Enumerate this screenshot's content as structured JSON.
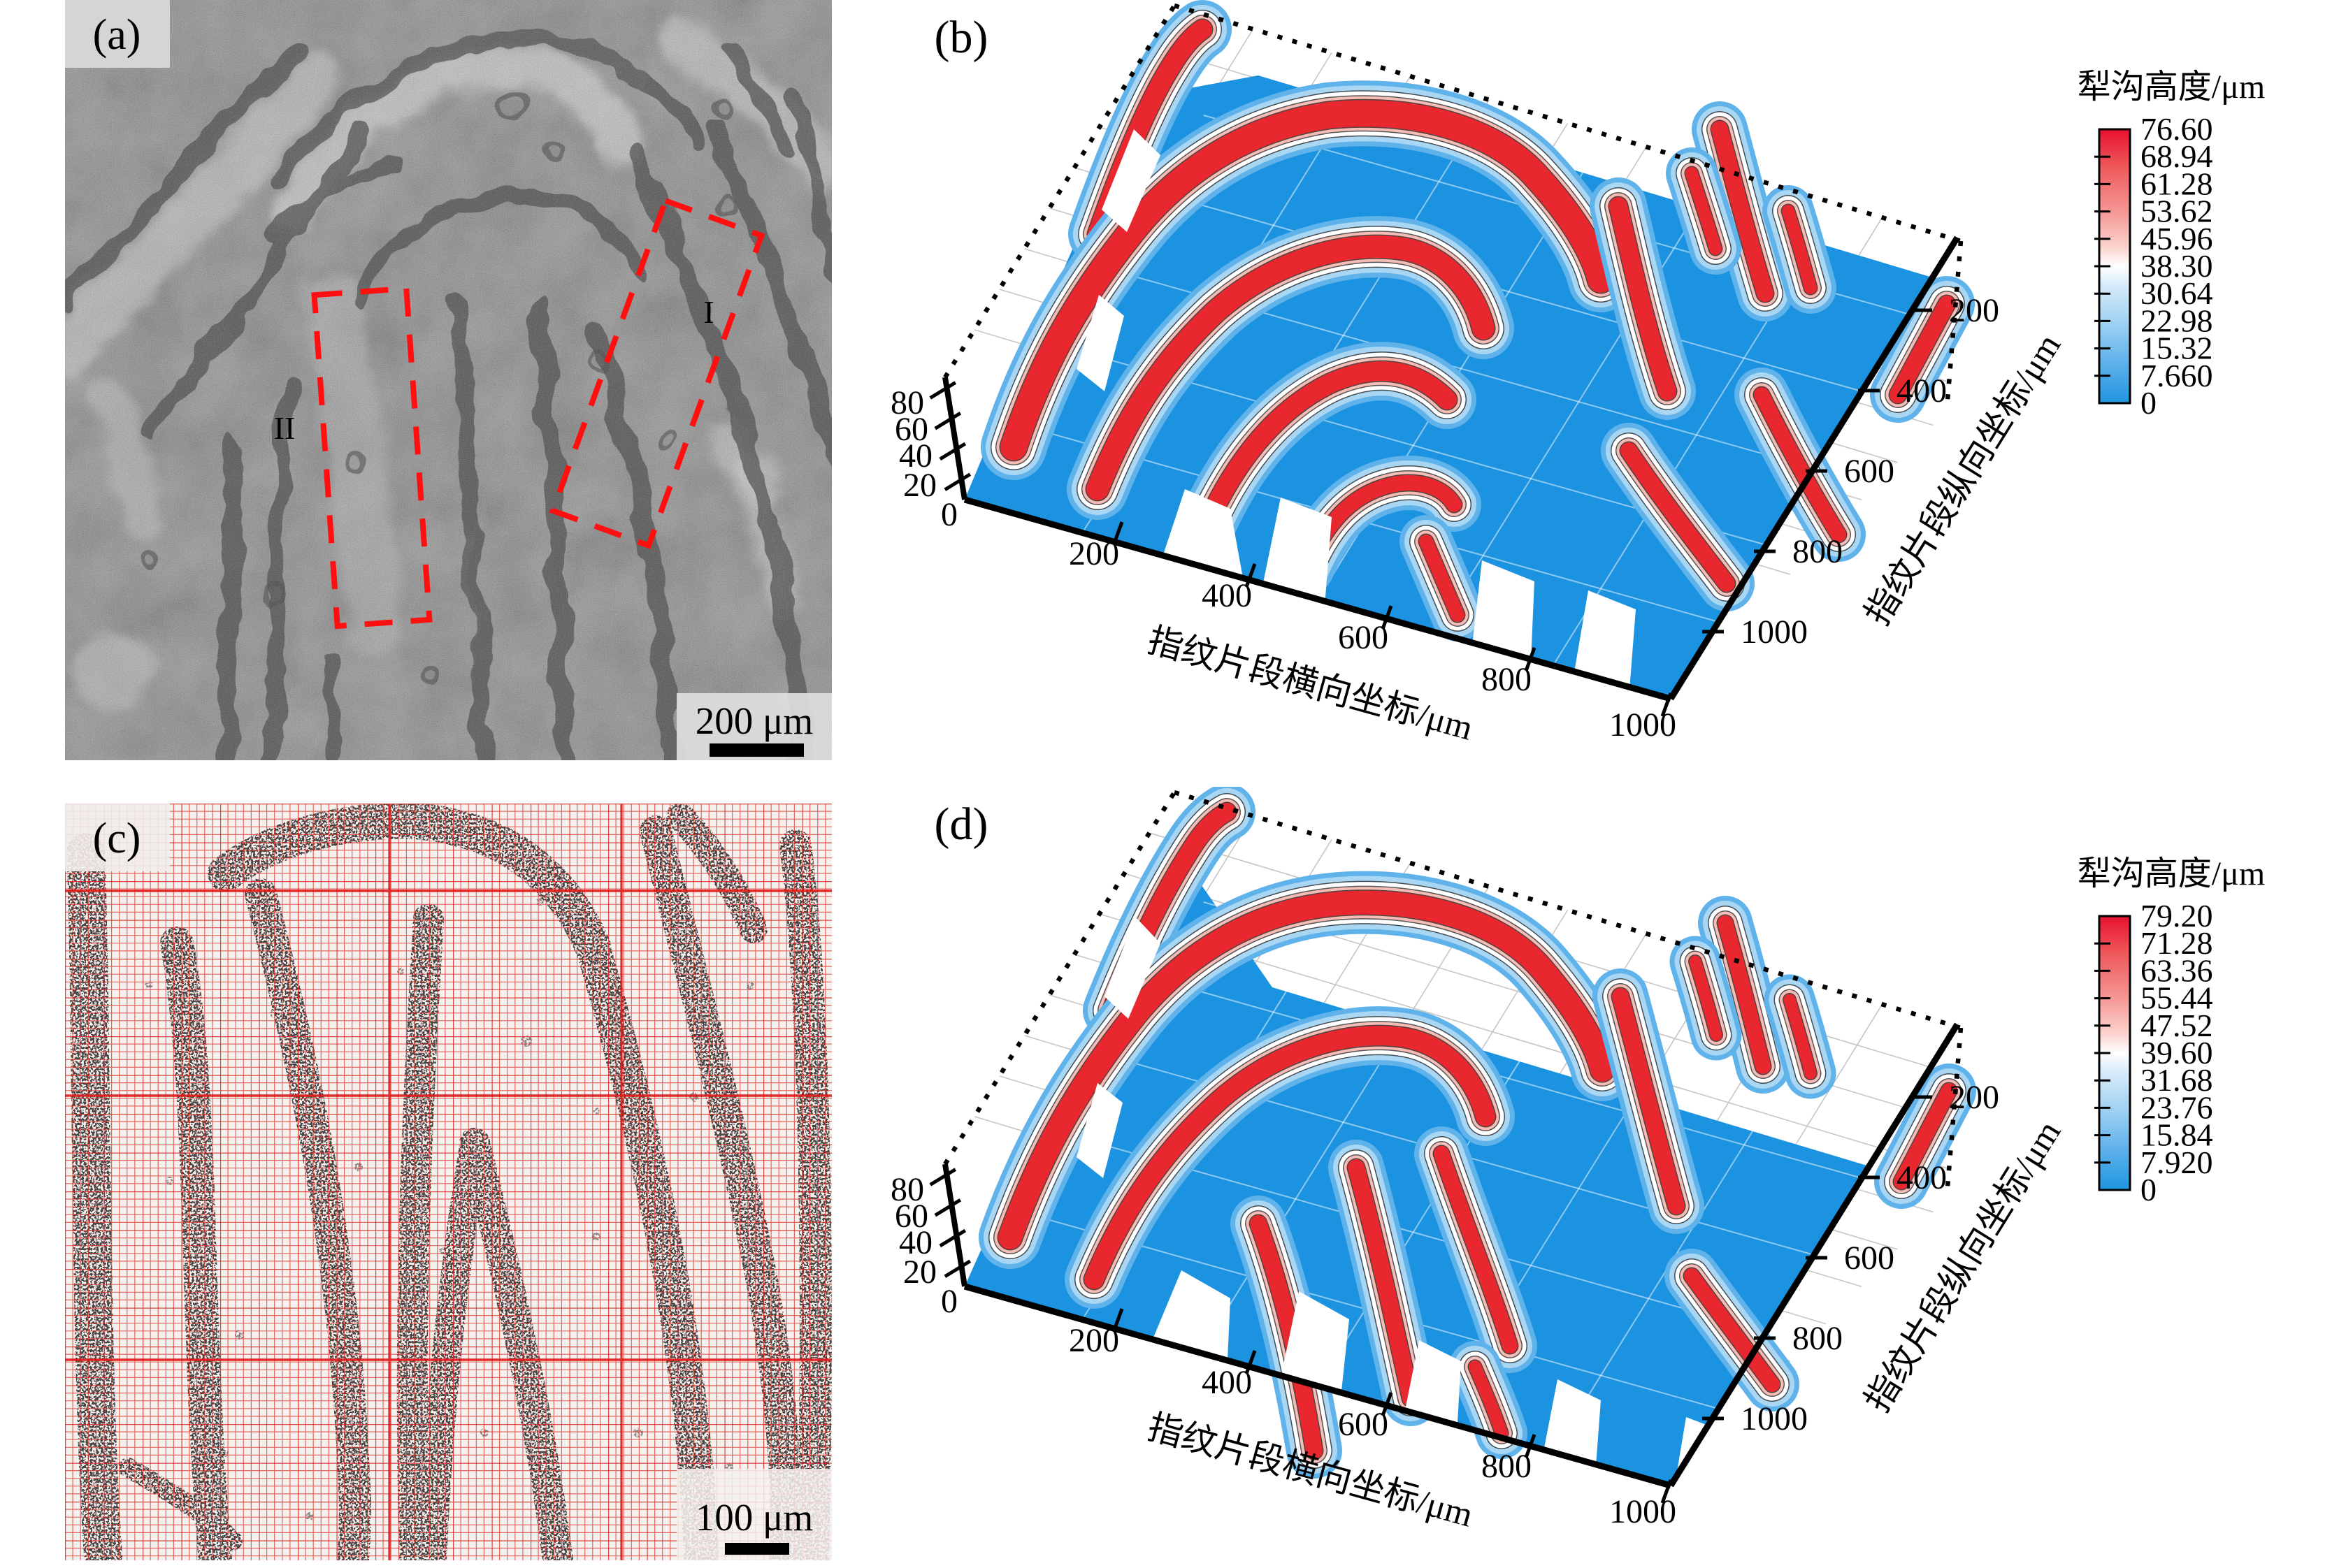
{
  "figure": {
    "background": "#ffffff",
    "panel_a": {
      "label": "(a)",
      "scale_bar_text": "200 μm",
      "region_1_label": "I",
      "region_2_label": "II",
      "annotation_color": "#ff0f0f",
      "description": "grayscale micrograph of a fingerprint segment with two dashed analysis regions"
    },
    "panel_c": {
      "label": "(c)",
      "scale_bar_text": "100 μm",
      "grid_color": "#e02a20",
      "description": "binarized fingerprint micrograph overlaid with a red measurement grid"
    }
  },
  "chart_data": [
    {
      "id": "plot-b",
      "panel_label": "(b)",
      "type": "heatmap",
      "subtype": "3d-surface",
      "title": "",
      "xlabel": "指纹片段横向坐标/μm",
      "ylabel": "指纹片段纵向坐标/μm",
      "zlabel": "犁沟高度/μm",
      "x_ticks": [
        "200",
        "400",
        "600",
        "800",
        "1000"
      ],
      "y_ticks": [
        "200",
        "400",
        "600",
        "800",
        "1000"
      ],
      "z_ticks": [
        "0",
        "20",
        "40",
        "60",
        "80"
      ],
      "xlim": [
        0,
        1000
      ],
      "ylim": [
        0,
        1000
      ],
      "zlim": [
        0,
        80
      ],
      "grid": true,
      "legend_position": "right-colorbar",
      "colorbar": {
        "title": "犁沟高度/μm",
        "max": 76.6,
        "min": 0,
        "tick_labels": [
          "76.60",
          "68.94",
          "61.28",
          "53.62",
          "45.96",
          "38.30",
          "30.64",
          "22.98",
          "15.32",
          "7.660",
          "0"
        ],
        "color_high": "#e8282e",
        "color_mid": "#ffffff",
        "color_low": "#1b93e0"
      }
    },
    {
      "id": "plot-d",
      "panel_label": "(d)",
      "type": "heatmap",
      "subtype": "3d-surface",
      "title": "",
      "xlabel": "指纹片段横向坐标/μm",
      "ylabel": "指纹片段纵向坐标/μm",
      "zlabel": "犁沟高度/μm",
      "x_ticks": [
        "200",
        "400",
        "600",
        "800",
        "1000"
      ],
      "y_ticks": [
        "200",
        "400",
        "600",
        "800",
        "1000"
      ],
      "z_ticks": [
        "0",
        "20",
        "40",
        "60",
        "80"
      ],
      "xlim": [
        0,
        1000
      ],
      "ylim": [
        0,
        1000
      ],
      "zlim": [
        0,
        80
      ],
      "grid": true,
      "legend_position": "right-colorbar",
      "colorbar": {
        "title": "犁沟高度/μm",
        "max": 79.2,
        "min": 0,
        "tick_labels": [
          "79.20",
          "71.28",
          "63.36",
          "55.44",
          "47.52",
          "39.60",
          "31.68",
          "23.76",
          "15.84",
          "7.920",
          "0"
        ],
        "color_high": "#e8282e",
        "color_mid": "#ffffff",
        "color_low": "#1b93e0"
      }
    }
  ]
}
